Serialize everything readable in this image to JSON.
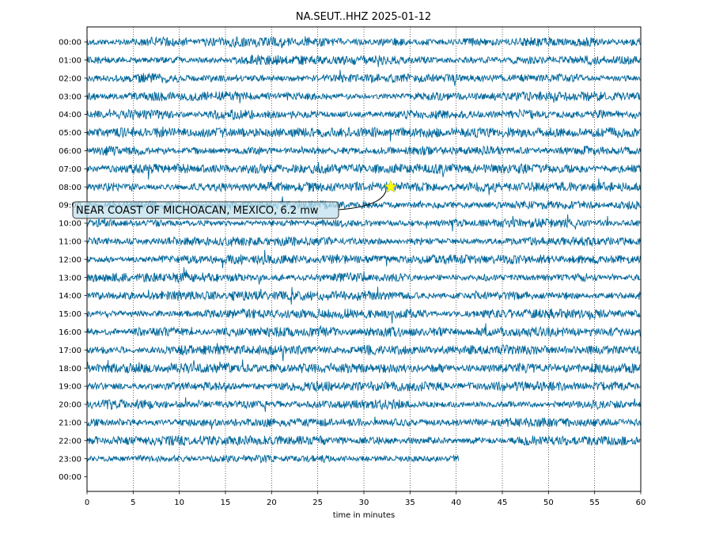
{
  "chart_data": {
    "type": "line",
    "title": "NA.SEUT..HHZ 2025-01-12",
    "xlabel": "time in minutes",
    "ylabel": "",
    "xlim": [
      0,
      60
    ],
    "x_ticks": [
      0,
      5,
      10,
      15,
      20,
      25,
      30,
      35,
      40,
      45,
      50,
      55,
      60
    ],
    "y_tick_labels": [
      "00:00",
      "01:00",
      "02:00",
      "03:00",
      "04:00",
      "05:00",
      "06:00",
      "07:00",
      "08:00",
      "09:00",
      "10:00",
      "11:00",
      "12:00",
      "13:00",
      "14:00",
      "15:00",
      "16:00",
      "17:00",
      "18:00",
      "19:00",
      "20:00",
      "21:00",
      "22:00",
      "23:00",
      "00:00"
    ],
    "grid": "x-dotted",
    "trace_color": "#00679b",
    "trace_end_minutes": [
      60,
      60,
      60,
      60,
      60,
      60,
      60,
      60,
      60,
      60,
      60,
      60,
      60,
      60,
      60,
      60,
      60,
      60,
      60,
      60,
      60,
      60,
      60,
      40.3
    ],
    "event": {
      "label": "NEAR COAST OF MICHOACAN, MEXICO, 6.2 mw",
      "minute": 32.9,
      "hour_row": 8,
      "marker_color": "#ffff00"
    }
  }
}
